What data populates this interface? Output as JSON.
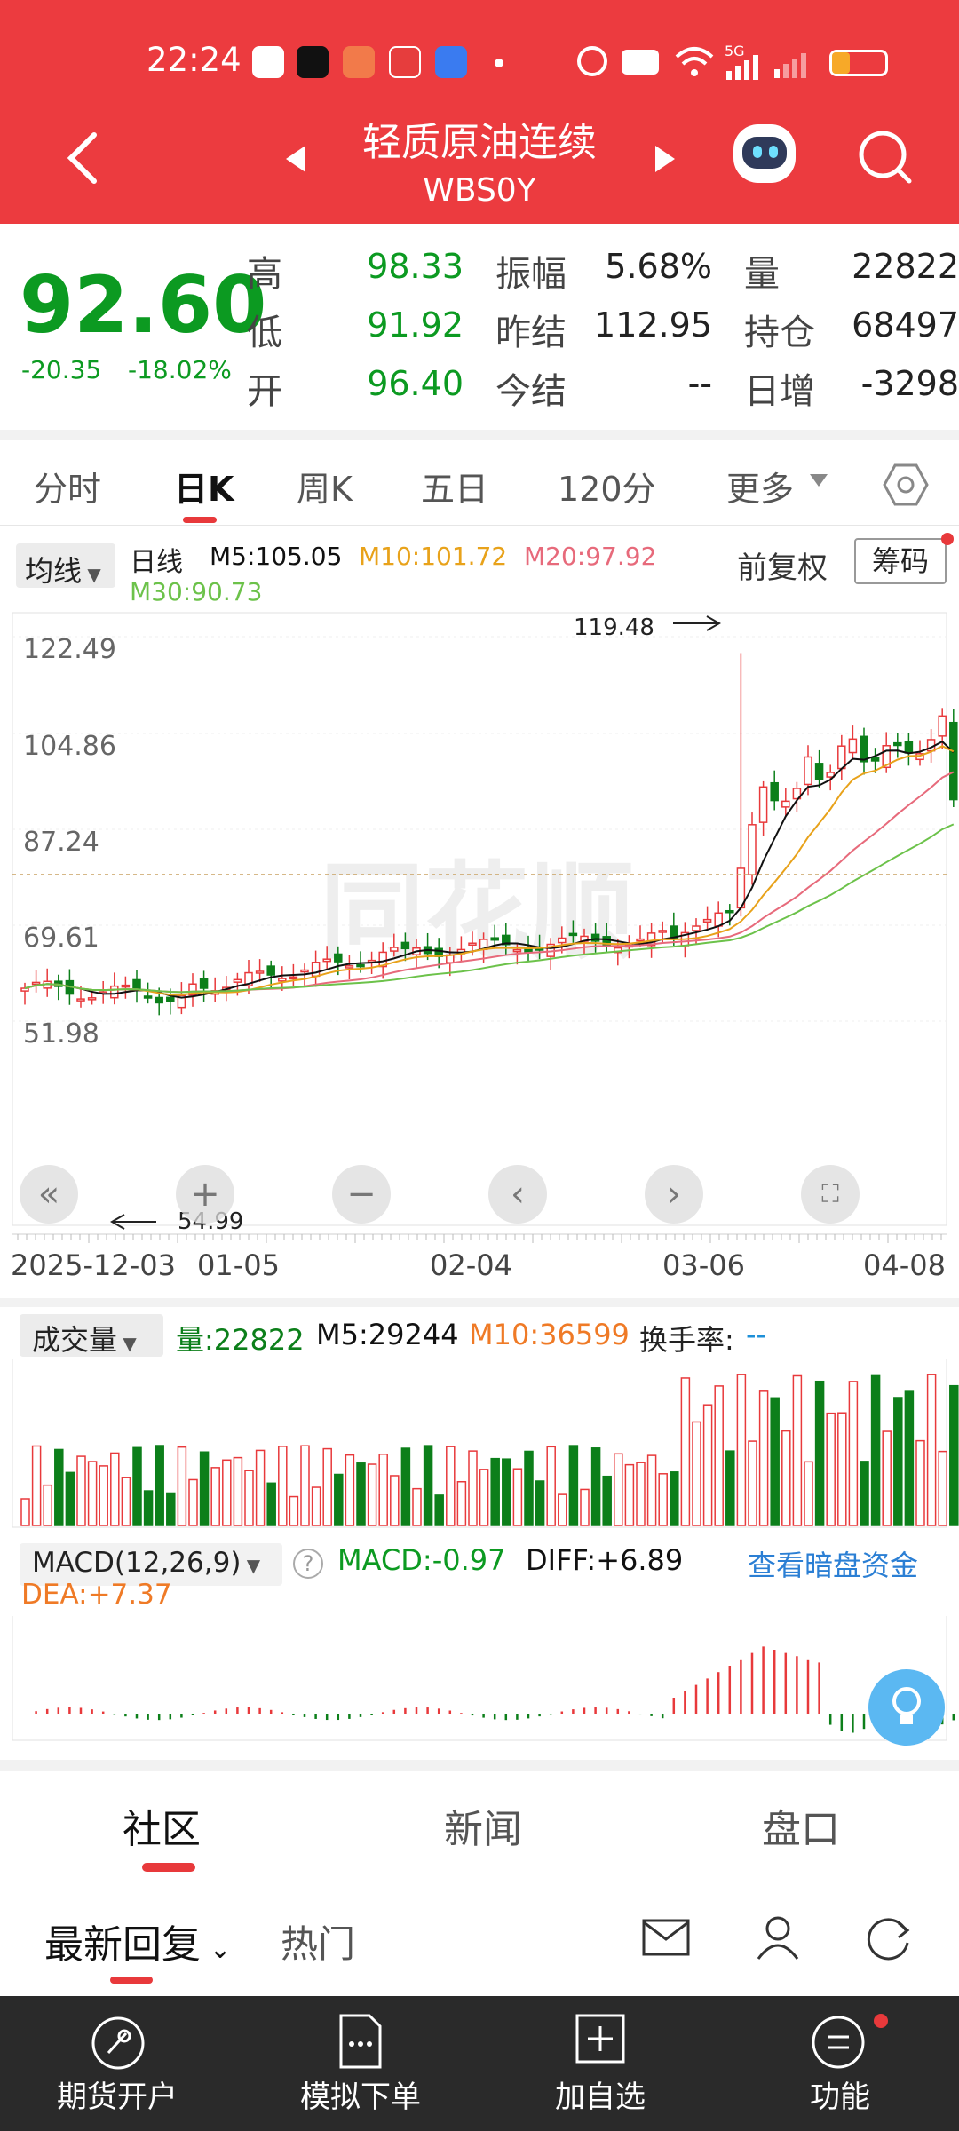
{
  "status": {
    "time": "22:24",
    "net_label": "5G"
  },
  "header": {
    "title": "轻质原油连续",
    "code": "WBS0Y"
  },
  "quote": {
    "price": "92.60",
    "change": "-20.35",
    "change_pct": "-18.02%",
    "rows": [
      {
        "l1": "高",
        "v1": "98.33",
        "l2": "振幅",
        "v2": "5.68%",
        "l3": "量",
        "v3": "22822"
      },
      {
        "l1": "低",
        "v1": "91.92",
        "l2": "昨结",
        "v2": "112.95",
        "l3": "持仓",
        "v3": "68497"
      },
      {
        "l1": "开",
        "v1": "96.40",
        "l2": "今结",
        "v2": "--",
        "l3": "日增",
        "v3": "-3298"
      }
    ]
  },
  "tabs": [
    "分时",
    "日K",
    "周K",
    "五日",
    "120分",
    "更多"
  ],
  "ma": {
    "select": "均线",
    "kind": "日线",
    "m5": "M5:105.05",
    "m10": "M10:101.72",
    "m20": "M20:97.92",
    "m30": "M30:90.73",
    "fq": "前复权",
    "chip": "筹码"
  },
  "chart_data": {
    "type": "candlestick",
    "y_ticks": [
      "122.49",
      "104.86",
      "87.24",
      "69.61",
      "51.98"
    ],
    "x_ticks": [
      "2025-12-03",
      "01-05",
      "02-04",
      "03-06",
      "04-08"
    ],
    "high_label": "119.48",
    "low_label": "54.99",
    "watermark": "同花顺",
    "colors": {
      "up": "#e8393b",
      "down": "#0c7f1a",
      "m5": "#111111",
      "m10": "#e8a21a",
      "m20": "#e76a7b",
      "m30": "#6cc24a"
    }
  },
  "volume": {
    "select": "成交量",
    "vol": "量:22822",
    "m5": "M5:29244",
    "m10": "M10:36599",
    "turnover_label": "换手率:",
    "turnover_val": "--"
  },
  "macd": {
    "select": "MACD(12,26,9)",
    "macd": "MACD:-0.97",
    "diff": "DIFF:+6.89",
    "dea": "DEA:+7.37",
    "link": "查看暗盘资金"
  },
  "section_tabs": [
    "社区",
    "新闻",
    "盘口"
  ],
  "sub_tabs": {
    "latest": "最新回复",
    "hot": "热门"
  },
  "bottom_nav": [
    "期货开户",
    "模拟下单",
    "加自选",
    "功能"
  ]
}
